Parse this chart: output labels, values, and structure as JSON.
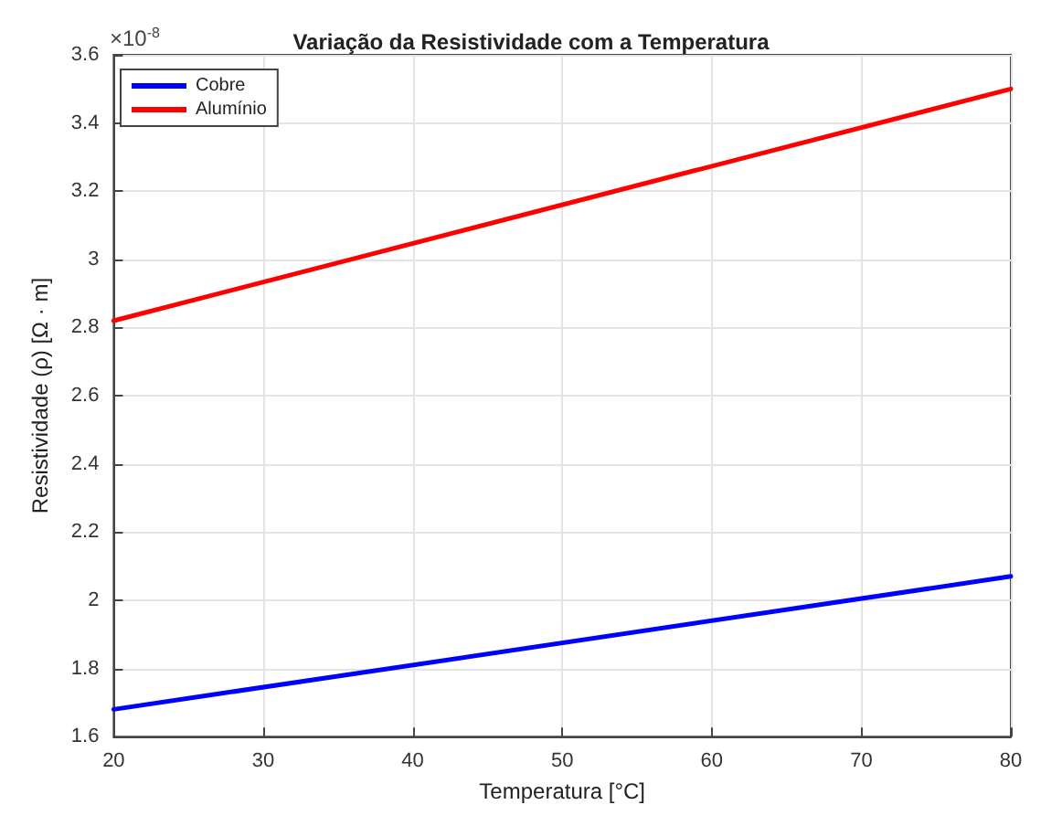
{
  "chart_data": {
    "type": "line",
    "title": "Variação da Resistividade com a Temperatura",
    "xlabel": "Temperatura [°C]",
    "ylabel": "Resistividade (ρ) [Ω · m]",
    "annotations": [
      "×10$^{-8}$"
    ],
    "x": [
      20,
      80
    ],
    "series": [
      {
        "name": "Cobre",
        "color": "#0000ff",
        "values": [
          1.68,
          2.07
        ]
      },
      {
        "name": "Alumínio",
        "color": "#ff0000",
        "values": [
          2.82,
          3.5
        ]
      }
    ],
    "xlim": [
      20,
      80
    ],
    "xticks": [
      20,
      30,
      40,
      50,
      60,
      70,
      80
    ],
    "ylim": [
      1.6,
      3.6
    ],
    "yticks": [
      1.6,
      1.8,
      2,
      2.2,
      2.4,
      2.6,
      2.8,
      3,
      3.2,
      3.4,
      3.6
    ],
    "grid": true,
    "legend": "top left",
    "marker": "none",
    "line_style": "solid"
  }
}
